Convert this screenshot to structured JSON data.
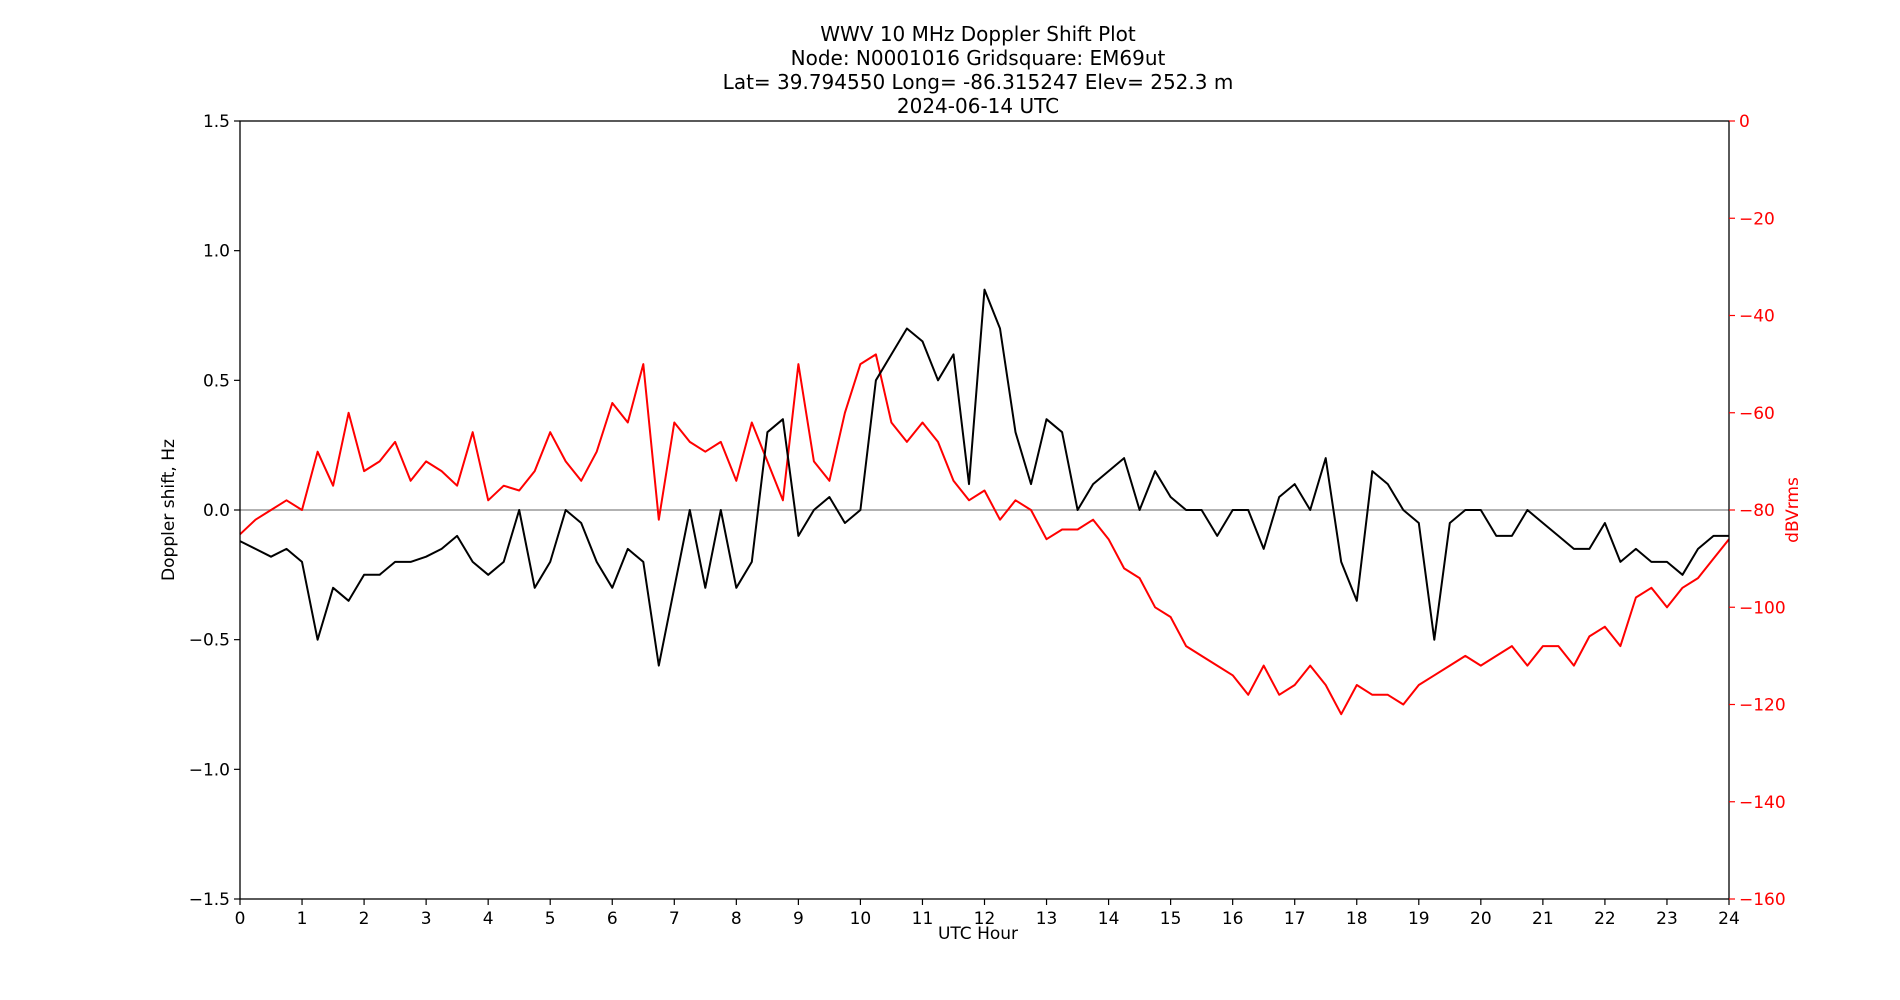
{
  "chart_data": {
    "type": "line",
    "title_lines": [
      "WWV 10 MHz Doppler Shift Plot",
      "Node:  N0001016     Gridsquare:  EM69ut",
      "Lat= 39.794550    Long= -86.315247    Elev= 252.3 m",
      "2024-06-14  UTC"
    ],
    "xlabel": "UTC Hour",
    "ylabel_left": "Doppler shift, Hz",
    "ylabel_right": "dBVrms",
    "xlim": [
      0,
      24
    ],
    "ylim_left": [
      -1.5,
      1.5
    ],
    "ylim_right": [
      -160,
      0
    ],
    "x_ticks": [
      "0",
      "1",
      "2",
      "3",
      "4",
      "5",
      "6",
      "7",
      "8",
      "9",
      "10",
      "11",
      "12",
      "13",
      "14",
      "15",
      "16",
      "17",
      "18",
      "19",
      "20",
      "21",
      "22",
      "23",
      "24"
    ],
    "y_ticks_left": [
      "1.5",
      "1.0",
      "0.5",
      "0.0",
      "−0.5",
      "−1.0",
      "−1.5"
    ],
    "y_ticks_right": [
      "0",
      "−20",
      "−40",
      "−60",
      "−80",
      "−100",
      "−120",
      "−140",
      "−160"
    ],
    "zero_line": 0.0,
    "colors": {
      "doppler": "#000000",
      "power": "#ff0000",
      "zero_line": "#999999",
      "axis": "#000000",
      "right_axis": "#ff0000"
    },
    "series": [
      {
        "axis": "left",
        "x": [
          0,
          0.25,
          0.5,
          0.75,
          1,
          1.25,
          1.5,
          1.75,
          2,
          2.25,
          2.5,
          2.75,
          3,
          3.25,
          3.5,
          3.75,
          4,
          4.25,
          4.5,
          4.75,
          5,
          5.25,
          5.5,
          5.75,
          6,
          6.25,
          6.5,
          6.75,
          7,
          7.25,
          7.5,
          7.75,
          8,
          8.25,
          8.5,
          8.75,
          9,
          9.25,
          9.5,
          9.75,
          10,
          10.25,
          10.5,
          10.75,
          11,
          11.25,
          11.5,
          11.75,
          12,
          12.25,
          12.5,
          12.75,
          13,
          13.25,
          13.5,
          13.75,
          14,
          14.25,
          14.5,
          14.75,
          15,
          15.25,
          15.5,
          15.75,
          16,
          16.25,
          16.5,
          16.75,
          17,
          17.25,
          17.5,
          17.75,
          18,
          18.25,
          18.5,
          18.75,
          19,
          19.25,
          19.5,
          19.75,
          20,
          20.25,
          20.5,
          20.75,
          21,
          21.25,
          21.5,
          21.75,
          22,
          22.25,
          22.5,
          22.75,
          23,
          23.25,
          23.5,
          23.75,
          24
        ],
        "y": [
          -0.12,
          -0.15,
          -0.18,
          -0.15,
          -0.2,
          -0.5,
          -0.3,
          -0.35,
          -0.25,
          -0.25,
          -0.2,
          -0.2,
          -0.18,
          -0.15,
          -0.1,
          -0.2,
          -0.25,
          -0.2,
          0.0,
          -0.3,
          -0.2,
          0.0,
          -0.05,
          -0.2,
          -0.3,
          -0.15,
          -0.2,
          -0.6,
          -0.3,
          0.0,
          -0.3,
          0.0,
          -0.3,
          -0.2,
          0.3,
          0.35,
          -0.1,
          0.0,
          0.05,
          -0.05,
          0.0,
          0.5,
          0.6,
          0.7,
          0.65,
          0.5,
          0.6,
          0.1,
          0.85,
          0.7,
          0.3,
          0.1,
          0.35,
          0.3,
          0.0,
          0.1,
          0.15,
          0.2,
          0.0,
          0.15,
          0.05,
          0.0,
          0.0,
          -0.1,
          0.0,
          0.0,
          -0.15,
          0.05,
          0.1,
          0.0,
          0.2,
          -0.2,
          -0.35,
          0.15,
          0.1,
          0.0,
          -0.05,
          -0.5,
          -0.05,
          0.0,
          0.0,
          -0.1,
          -0.1,
          0.0,
          -0.05,
          -0.1,
          -0.15,
          -0.15,
          -0.05,
          -0.2,
          -0.15,
          -0.2,
          -0.2,
          -0.25,
          -0.15,
          -0.1,
          -0.1
        ]
      },
      {
        "axis": "right",
        "x": [
          0,
          0.25,
          0.5,
          0.75,
          1,
          1.25,
          1.5,
          1.75,
          2,
          2.25,
          2.5,
          2.75,
          3,
          3.25,
          3.5,
          3.75,
          4,
          4.25,
          4.5,
          4.75,
          5,
          5.25,
          5.5,
          5.75,
          6,
          6.25,
          6.5,
          6.75,
          7,
          7.25,
          7.5,
          7.75,
          8,
          8.25,
          8.5,
          8.75,
          9,
          9.25,
          9.5,
          9.75,
          10,
          10.25,
          10.5,
          10.75,
          11,
          11.25,
          11.5,
          11.75,
          12,
          12.25,
          12.5,
          12.75,
          13,
          13.25,
          13.5,
          13.75,
          14,
          14.25,
          14.5,
          14.75,
          15,
          15.25,
          15.5,
          15.75,
          16,
          16.25,
          16.5,
          16.75,
          17,
          17.25,
          17.5,
          17.75,
          18,
          18.25,
          18.5,
          18.75,
          19,
          19.25,
          19.5,
          19.75,
          20,
          20.25,
          20.5,
          20.75,
          21,
          21.25,
          21.5,
          21.75,
          22,
          22.25,
          22.5,
          22.75,
          23,
          23.25,
          23.5,
          23.75,
          24
        ],
        "y": [
          -85,
          -82,
          -80,
          -78,
          -80,
          -68,
          -75,
          -60,
          -72,
          -70,
          -66,
          -74,
          -70,
          -72,
          -75,
          -64,
          -78,
          -75,
          -76,
          -72,
          -64,
          -70,
          -74,
          -68,
          -58,
          -62,
          -50,
          -82,
          -62,
          -66,
          -68,
          -66,
          -74,
          -62,
          -70,
          -78,
          -50,
          -70,
          -74,
          -60,
          -50,
          -48,
          -62,
          -66,
          -62,
          -66,
          -74,
          -78,
          -76,
          -82,
          -78,
          -80,
          -86,
          -84,
          -84,
          -82,
          -86,
          -92,
          -94,
          -100,
          -102,
          -108,
          -110,
          -112,
          -114,
          -118,
          -112,
          -118,
          -116,
          -112,
          -116,
          -122,
          -116,
          -118,
          -118,
          -120,
          -116,
          -114,
          -112,
          -110,
          -112,
          -110,
          -108,
          -112,
          -108,
          -108,
          -112,
          -106,
          -104,
          -108,
          -98,
          -96,
          -100,
          -96,
          -94,
          -90,
          -86
        ]
      }
    ]
  }
}
